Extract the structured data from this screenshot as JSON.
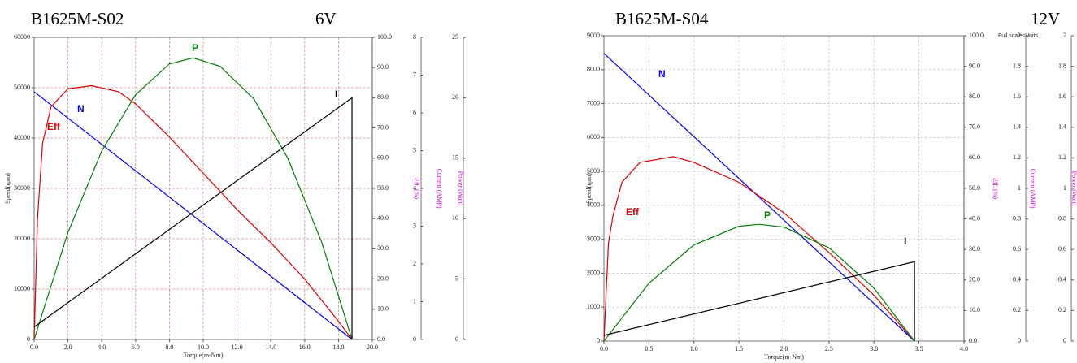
{
  "chart_data": [
    {
      "type": "line",
      "title": "B1625M-S02",
      "subtitle": "6V",
      "xlabel": "Torque(m-Nm)",
      "xlim": [
        0,
        20
      ],
      "xticks": [
        {
          "value": 0,
          "label": "0.0"
        },
        {
          "value": 2,
          "label": "2.0"
        },
        {
          "value": 4,
          "label": "4.0"
        },
        {
          "value": 6,
          "label": "6.0"
        },
        {
          "value": 8,
          "label": "8.0"
        },
        {
          "value": 10,
          "label": "10.0"
        },
        {
          "value": 12,
          "label": "12.0"
        },
        {
          "value": 14,
          "label": "14.0"
        },
        {
          "value": 16,
          "label": "16.0"
        },
        {
          "value": 18,
          "label": "18.0"
        },
        {
          "value": 20,
          "label": "20.0"
        }
      ],
      "ylabel": "Speed(rpm)",
      "ylim": [
        0,
        60000
      ],
      "yticks": [
        0,
        10000,
        20000,
        30000,
        40000,
        50000,
        60000
      ],
      "y2label": "Eff. (%)",
      "y2lim": [
        0,
        100
      ],
      "y2ticks": [
        {
          "value": 0,
          "label": "0.0"
        },
        {
          "value": 10,
          "label": "10.0"
        },
        {
          "value": 20,
          "label": "20.0"
        },
        {
          "value": 30,
          "label": "30.0"
        },
        {
          "value": 40,
          "label": "40.0"
        },
        {
          "value": 50,
          "label": "50.0"
        },
        {
          "value": 60,
          "label": "60.0"
        },
        {
          "value": 70,
          "label": "70.0"
        },
        {
          "value": 80,
          "label": "80.0"
        },
        {
          "value": 90,
          "label": "90.0"
        },
        {
          "value": 100,
          "label": "100.0"
        }
      ],
      "y3label": "Current (AMP)",
      "y3lim": [
        0,
        8
      ],
      "y3ticks": [
        0,
        1,
        2,
        3,
        4,
        5,
        6,
        7,
        8
      ],
      "y4label": "Power (Watt)",
      "y4lim": [
        0,
        25
      ],
      "y4ticks": [
        0,
        5,
        10,
        15,
        20,
        25
      ],
      "grid": true,
      "grid_color": "#d89090",
      "series": [
        {
          "name": "N",
          "color": "#0000ff",
          "axis": "y",
          "x": [
            0,
            18.8
          ],
          "values": [
            49200,
            0
          ]
        },
        {
          "name": "Eff",
          "color": "#e00000",
          "axis": "y2",
          "x": [
            0,
            0.2,
            0.5,
            1,
            2,
            3.4,
            5,
            6,
            8,
            10,
            11,
            12,
            14,
            16,
            18,
            18.8
          ],
          "values": [
            0,
            40,
            65,
            77,
            83,
            84,
            82,
            78,
            67,
            55,
            49,
            43,
            32,
            20,
            6,
            0
          ]
        },
        {
          "name": "P",
          "color": "#008000",
          "axis": "y4",
          "x": [
            0,
            2,
            4,
            6,
            8,
            9.4,
            11,
            13,
            15,
            17,
            18.8
          ],
          "values": [
            0,
            8.86,
            15.6,
            20.25,
            22.8,
            23.3,
            22.6,
            19.9,
            15,
            8.07,
            0
          ]
        },
        {
          "name": "I",
          "color": "#000000",
          "axis": "y3",
          "x": [
            0,
            18.8,
            18.8
          ],
          "values": [
            0.33,
            6.4,
            0
          ]
        }
      ]
    },
    {
      "type": "line",
      "title": "B1625M-S04",
      "subtitle": "12V",
      "note": "Full scalesUnits :",
      "xlabel": "Torque(m-Nm)",
      "xlim": [
        0,
        4
      ],
      "xticks": [
        {
          "value": 0,
          "label": "0.0"
        },
        0.5,
        {
          "value": 1,
          "label": "1.0"
        },
        1.5,
        {
          "value": 2,
          "label": "2.0"
        },
        2.5,
        {
          "value": 3,
          "label": "3.0"
        },
        3.5,
        {
          "value": 4,
          "label": "4.0"
        }
      ],
      "ylabel": "Speed(rpm)",
      "ylim": [
        0,
        9000
      ],
      "yticks": [
        0,
        1000,
        2000,
        3000,
        4000,
        5000,
        6000,
        7000,
        8000,
        9000
      ],
      "y2label": "Eff. (%)",
      "y2lim": [
        0,
        100
      ],
      "y2ticks": [
        {
          "value": 0,
          "label": "0.0"
        },
        {
          "value": 10,
          "label": "10.0"
        },
        {
          "value": 20,
          "label": "20.0"
        },
        {
          "value": 30,
          "label": "30.0"
        },
        {
          "value": 40,
          "label": "40.0"
        },
        {
          "value": 50,
          "label": "50.0"
        },
        {
          "value": 60,
          "label": "60.0"
        },
        {
          "value": 70,
          "label": "70.0"
        },
        {
          "value": 80,
          "label": "80.0"
        },
        {
          "value": 90,
          "label": "90.0"
        },
        {
          "value": 100,
          "label": "100.0"
        }
      ],
      "y3label": "Current (AMP)",
      "y3lim": [
        0,
        2
      ],
      "y3ticks": [
        0,
        0.2,
        0.4,
        0.6,
        0.8,
        1,
        1.2,
        1.4,
        1.6,
        1.8,
        2
      ],
      "y4label": "Power (Watt)",
      "y4lim": [
        0,
        2
      ],
      "y4ticks": [
        0,
        0.2,
        0.4,
        0.6,
        0.8,
        1,
        1.2,
        1.4,
        1.6,
        1.8,
        2
      ],
      "grid": true,
      "grid_color": "#c8c8c8",
      "series": [
        {
          "name": "N",
          "color": "#0000ff",
          "axis": "y",
          "x": [
            0,
            3.45
          ],
          "values": [
            8480,
            0
          ]
        },
        {
          "name": "Eff",
          "color": "#e00000",
          "axis": "y2",
          "x": [
            0,
            0.05,
            0.1,
            0.2,
            0.4,
            0.77,
            1,
            1.5,
            2,
            2.5,
            3,
            3.45
          ],
          "values": [
            0,
            32,
            41,
            52,
            58.5,
            60.4,
            58.5,
            52,
            42,
            29,
            15,
            0
          ]
        },
        {
          "name": "P",
          "color": "#008000",
          "axis": "y4",
          "x": [
            0,
            0.5,
            1,
            1.5,
            1.725,
            2,
            2.5,
            3,
            3.45
          ],
          "values": [
            0,
            0.379,
            0.63,
            0.752,
            0.765,
            0.746,
            0.611,
            0.347,
            0
          ]
        },
        {
          "name": "I",
          "color": "#000000",
          "axis": "y3",
          "x": [
            0,
            3.45,
            3.45
          ],
          "values": [
            0.038,
            0.52,
            0
          ]
        }
      ]
    }
  ]
}
